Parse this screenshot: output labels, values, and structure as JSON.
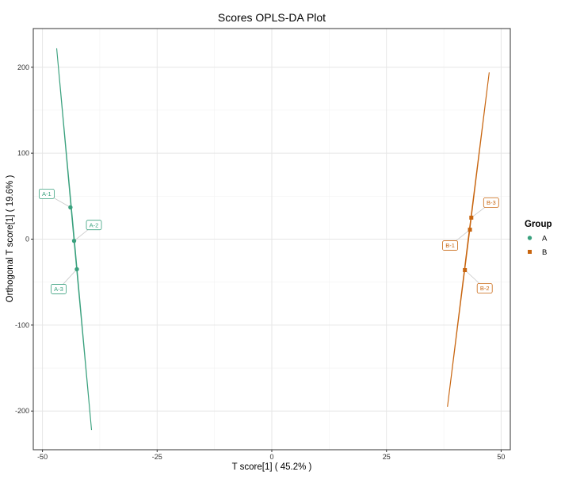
{
  "chart_data": {
    "type": "scatter",
    "title": "Scores OPLS-DA Plot",
    "xlabel": "T score[1] ( 45.2% )",
    "ylabel": "Orthogonal T score[1] ( 19.6% )",
    "xlim": [
      -52,
      52
    ],
    "ylim": [
      -245,
      245
    ],
    "xticks": [
      -50,
      -25,
      0,
      25,
      50
    ],
    "xtick_labels": [
      "-50",
      "-25",
      "0",
      "25",
      "50"
    ],
    "yticks": [
      -200,
      -100,
      0,
      100,
      200
    ],
    "ytick_labels": [
      "-200",
      "-100",
      "0",
      "100",
      "200"
    ],
    "grid": true,
    "legend": {
      "title": "Group",
      "position": "right",
      "entries": [
        {
          "label": "A",
          "color": "#3aa17e",
          "shape": "circle"
        },
        {
          "label": "B",
          "color": "#c8650f",
          "shape": "square"
        }
      ]
    },
    "series": [
      {
        "name": "A",
        "color": "#3aa17e",
        "shape": "circle",
        "points": [
          {
            "label": "A-1",
            "x": -43.9,
            "y": 37
          },
          {
            "label": "A-2",
            "x": -43.1,
            "y": -2
          },
          {
            "label": "A-3",
            "x": -42.5,
            "y": -35
          }
        ],
        "ellipse_major_axis": [
          [
            -46.9,
            222
          ],
          [
            -39.3,
            -222
          ]
        ]
      },
      {
        "name": "B",
        "color": "#c8650f",
        "shape": "square",
        "points": [
          {
            "label": "B-1",
            "x": 43.2,
            "y": 11
          },
          {
            "label": "B-2",
            "x": 42.1,
            "y": -36
          },
          {
            "label": "B-3",
            "x": 43.5,
            "y": 25
          }
        ],
        "ellipse_major_axis": [
          [
            38.3,
            -195
          ],
          [
            47.4,
            194
          ]
        ]
      }
    ]
  }
}
